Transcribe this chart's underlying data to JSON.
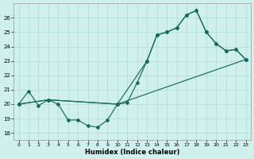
{
  "xlabel": "Humidex (Indice chaleur)",
  "background_color": "#cff0ec",
  "grid_color": "#aaddd8",
  "line_color": "#1a6b5a",
  "xlim": [
    -0.5,
    23.5
  ],
  "ylim": [
    17.5,
    27.0
  ],
  "yticks": [
    18,
    19,
    20,
    21,
    22,
    23,
    24,
    25,
    26
  ],
  "xticks": [
    0,
    1,
    2,
    3,
    4,
    5,
    6,
    7,
    8,
    9,
    10,
    11,
    12,
    13,
    14,
    15,
    16,
    17,
    18,
    19,
    20,
    21,
    22,
    23
  ],
  "line1_x": [
    0,
    1,
    2,
    3,
    4,
    5,
    6,
    7,
    8,
    9,
    10,
    11,
    12,
    13,
    14,
    15,
    16,
    17,
    18,
    19,
    20,
    21,
    22,
    23
  ],
  "line1_y": [
    20.0,
    20.9,
    19.9,
    20.3,
    20.0,
    18.9,
    18.9,
    18.5,
    18.4,
    18.9,
    20.0,
    20.1,
    21.5,
    23.0,
    24.8,
    25.0,
    25.3,
    26.2,
    26.5,
    25.0,
    24.2,
    23.7,
    23.8,
    23.1
  ],
  "line2_x": [
    0,
    3,
    10,
    13,
    14,
    15,
    16,
    17,
    18,
    19,
    20,
    21,
    22,
    23
  ],
  "line2_y": [
    20.0,
    20.3,
    20.0,
    23.0,
    24.8,
    25.0,
    25.3,
    26.2,
    26.5,
    25.0,
    24.2,
    23.7,
    23.8,
    23.1
  ],
  "line3_x": [
    0,
    3,
    10,
    23
  ],
  "line3_y": [
    20.0,
    20.3,
    20.0,
    23.1
  ]
}
